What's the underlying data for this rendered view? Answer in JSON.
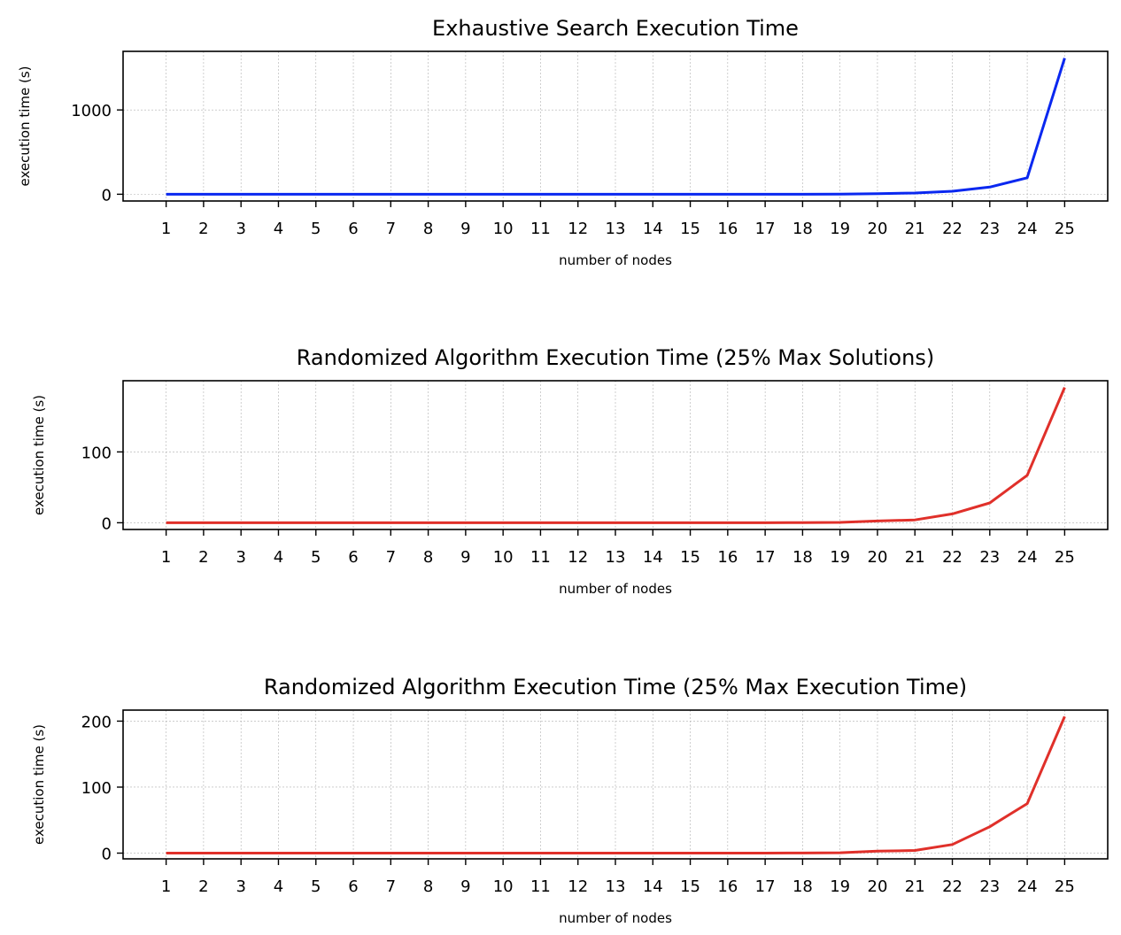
{
  "chart_data": [
    {
      "type": "line",
      "title": "Exhaustive Search Execution Time",
      "xlabel": "number of nodes",
      "ylabel": "execution time (s)",
      "x": [
        1,
        2,
        3,
        4,
        5,
        6,
        7,
        8,
        9,
        10,
        11,
        12,
        13,
        14,
        15,
        16,
        17,
        18,
        19,
        20,
        21,
        22,
        23,
        24,
        25
      ],
      "series": [
        {
          "color": "#0a28f0",
          "values": [
            0,
            0,
            0,
            0,
            0,
            0,
            0,
            0,
            0,
            0,
            0,
            0,
            0,
            0,
            0,
            0,
            0,
            0,
            1,
            6,
            15,
            35,
            85,
            195,
            1615
          ]
        }
      ],
      "yticks": [
        0,
        1000
      ],
      "ylim": [
        -80,
        1695
      ],
      "xlim": [
        -0.15,
        26.15
      ],
      "grid": true
    },
    {
      "type": "line",
      "title": "Randomized Algorithm Execution Time (25% Max Solutions)",
      "xlabel": "number of nodes",
      "ylabel": "execution time (s)",
      "x": [
        1,
        2,
        3,
        4,
        5,
        6,
        7,
        8,
        9,
        10,
        11,
        12,
        13,
        14,
        15,
        16,
        17,
        18,
        19,
        20,
        21,
        22,
        23,
        24,
        25
      ],
      "series": [
        {
          "color": "#e0302a",
          "values": [
            0,
            0,
            0,
            0,
            0,
            0,
            0,
            0,
            0,
            0,
            0,
            0,
            0,
            0,
            0,
            0,
            0,
            0.2,
            0.5,
            2.5,
            4,
            12.5,
            28,
            67,
            191
          ]
        }
      ],
      "yticks": [
        0,
        100
      ],
      "ylim": [
        -9.5,
        200.5
      ],
      "xlim": [
        -0.15,
        26.15
      ],
      "grid": true
    },
    {
      "type": "line",
      "title": "Randomized Algorithm Execution Time (25% Max Execution Time)",
      "xlabel": "number of nodes",
      "ylabel": "execution time (s)",
      "x": [
        1,
        2,
        3,
        4,
        5,
        6,
        7,
        8,
        9,
        10,
        11,
        12,
        13,
        14,
        15,
        16,
        17,
        18,
        19,
        20,
        21,
        22,
        23,
        24,
        25
      ],
      "series": [
        {
          "color": "#e0302a",
          "values": [
            0,
            0,
            0,
            0,
            0,
            0,
            0,
            0,
            0,
            0,
            0,
            0,
            0,
            0,
            0,
            0,
            0,
            0.2,
            0.6,
            3,
            4,
            13,
            40,
            75,
            207
          ]
        }
      ],
      "yticks": [
        0,
        100,
        200
      ],
      "ylim": [
        -8.7,
        216.7
      ],
      "xlim": [
        -0.15,
        26.15
      ],
      "grid": true
    }
  ]
}
